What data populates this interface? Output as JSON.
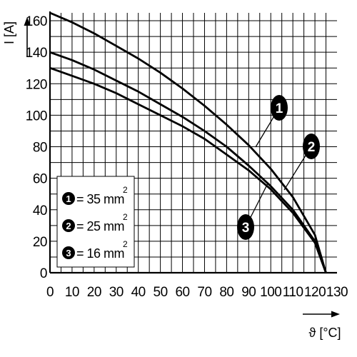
{
  "chart_data": {
    "type": "line",
    "xlabel": "ϑ [°C]",
    "ylabel": "I [A]",
    "xlim": [
      0,
      130
    ],
    "ylim": [
      0,
      165
    ],
    "xticks": [
      0,
      10,
      20,
      30,
      40,
      50,
      60,
      70,
      80,
      90,
      100,
      110,
      120,
      130
    ],
    "yticks": [
      0,
      20,
      40,
      60,
      80,
      100,
      120,
      140,
      160
    ],
    "grid": true,
    "series": [
      {
        "name": "1",
        "legend_label": "= 35 mm",
        "legend_superscript": "2",
        "x": [
          0,
          10,
          20,
          30,
          40,
          50,
          60,
          70,
          80,
          90,
          100,
          110,
          120,
          125
        ],
        "y": [
          165,
          159,
          152,
          144,
          136,
          127,
          117,
          106,
          94,
          81,
          66,
          48,
          24,
          0
        ]
      },
      {
        "name": "2",
        "legend_label": "= 25 mm",
        "legend_superscript": "2",
        "x": [
          0,
          10,
          20,
          30,
          40,
          50,
          60,
          70,
          80,
          90,
          100,
          110,
          120,
          125
        ],
        "y": [
          140,
          135,
          129,
          122,
          115,
          107,
          99,
          90,
          80,
          68,
          55,
          40,
          20,
          0
        ]
      },
      {
        "name": "3",
        "legend_label": "= 16 mm",
        "legend_superscript": "2",
        "x": [
          0,
          10,
          20,
          30,
          40,
          50,
          60,
          70,
          80,
          90,
          100,
          110,
          120,
          125
        ],
        "y": [
          130,
          125,
          120,
          114,
          107,
          100,
          93,
          85,
          75,
          65,
          53,
          38,
          19,
          0
        ]
      }
    ],
    "callouts": [
      "1",
      "2",
      "3"
    ],
    "legend_placement": "bottom-left"
  }
}
